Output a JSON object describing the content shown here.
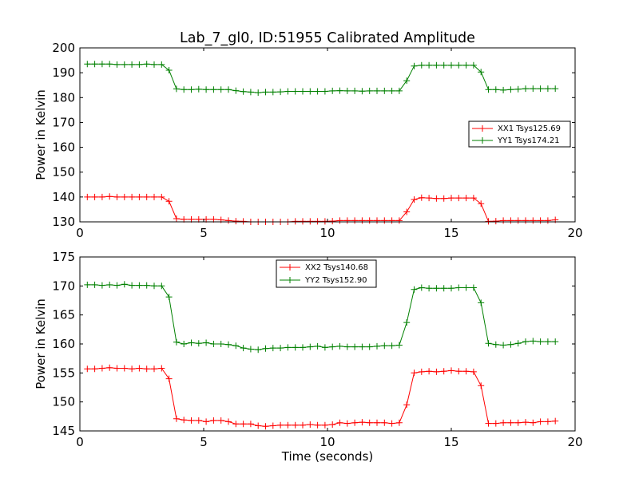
{
  "title": "Lab_7_gl0, ID:51955 Calibrated Amplitude",
  "chart_data": [
    {
      "type": "line",
      "title": "Lab_7_gl0, ID:51955 Calibrated Amplitude",
      "xlabel": "",
      "ylabel": "Power in Kelvin",
      "xlim": [
        0,
        20
      ],
      "ylim": [
        130,
        200
      ],
      "xticks": [
        "0",
        "5",
        "10",
        "15",
        "20"
      ],
      "yticks": [
        "130",
        "140",
        "150",
        "160",
        "170",
        "180",
        "190",
        "200"
      ],
      "legend_position": "center-right",
      "x": [
        0.3,
        0.6,
        0.9,
        1.2,
        1.5,
        1.8,
        2.1,
        2.4,
        2.7,
        3.0,
        3.3,
        3.6,
        3.9,
        4.2,
        4.5,
        4.8,
        5.1,
        5.4,
        5.7,
        6.0,
        6.3,
        6.6,
        6.9,
        7.2,
        7.5,
        7.8,
        8.1,
        8.4,
        8.7,
        9.0,
        9.3,
        9.6,
        9.9,
        10.2,
        10.5,
        10.8,
        11.1,
        11.4,
        11.7,
        12.0,
        12.3,
        12.6,
        12.9,
        13.2,
        13.5,
        13.8,
        14.1,
        14.4,
        14.7,
        15.0,
        15.3,
        15.6,
        15.9,
        16.2,
        16.5,
        16.8,
        17.1,
        17.4,
        17.7,
        18.0,
        18.3,
        18.6,
        18.9,
        19.2
      ],
      "series": [
        {
          "name": "XX1 Tsys125.69",
          "color": "#ff0000",
          "values": [
            140.0,
            140.0,
            140.0,
            140.2,
            140.0,
            140.0,
            140.0,
            140.0,
            140.0,
            140.0,
            140.0,
            138.3,
            131.3,
            131.0,
            131.0,
            131.0,
            131.0,
            131.0,
            130.8,
            130.5,
            130.3,
            130.2,
            130.0,
            130.0,
            130.0,
            130.0,
            130.0,
            130.0,
            130.2,
            130.2,
            130.2,
            130.2,
            130.2,
            130.3,
            130.5,
            130.5,
            130.5,
            130.5,
            130.5,
            130.5,
            130.5,
            130.5,
            130.5,
            134.0,
            139.0,
            139.7,
            139.6,
            139.4,
            139.4,
            139.6,
            139.6,
            139.6,
            139.6,
            137.3,
            130.2,
            130.3,
            130.5,
            130.5,
            130.5,
            130.5,
            130.5,
            130.5,
            130.5,
            130.8
          ]
        },
        {
          "name": "YY1 Tsys174.21",
          "color": "#008000",
          "values": [
            193.5,
            193.5,
            193.5,
            193.5,
            193.3,
            193.3,
            193.3,
            193.3,
            193.5,
            193.3,
            193.3,
            191.0,
            183.5,
            183.2,
            183.2,
            183.4,
            183.2,
            183.2,
            183.2,
            183.2,
            182.8,
            182.4,
            182.2,
            182.0,
            182.2,
            182.2,
            182.3,
            182.5,
            182.5,
            182.5,
            182.5,
            182.5,
            182.5,
            182.7,
            182.8,
            182.7,
            182.7,
            182.6,
            182.7,
            182.7,
            182.7,
            182.7,
            182.7,
            186.8,
            192.7,
            193.0,
            193.0,
            193.0,
            193.0,
            193.0,
            193.0,
            193.0,
            193.0,
            190.3,
            183.2,
            183.2,
            183.0,
            183.2,
            183.4,
            183.6,
            183.6,
            183.6,
            183.6,
            183.6
          ]
        }
      ]
    },
    {
      "type": "line",
      "title": "",
      "xlabel": "Time (seconds)",
      "ylabel": "Power in Kelvin",
      "xlim": [
        0,
        20
      ],
      "ylim": [
        145,
        175
      ],
      "xticks": [
        "0",
        "5",
        "10",
        "15",
        "20"
      ],
      "yticks": [
        "145",
        "150",
        "155",
        "160",
        "165",
        "170",
        "175"
      ],
      "legend_position": "upper-center",
      "x": [
        0.3,
        0.6,
        0.9,
        1.2,
        1.5,
        1.8,
        2.1,
        2.4,
        2.7,
        3.0,
        3.3,
        3.6,
        3.9,
        4.2,
        4.5,
        4.8,
        5.1,
        5.4,
        5.7,
        6.0,
        6.3,
        6.6,
        6.9,
        7.2,
        7.5,
        7.8,
        8.1,
        8.4,
        8.7,
        9.0,
        9.3,
        9.6,
        9.9,
        10.2,
        10.5,
        10.8,
        11.1,
        11.4,
        11.7,
        12.0,
        12.3,
        12.6,
        12.9,
        13.2,
        13.5,
        13.8,
        14.1,
        14.4,
        14.7,
        15.0,
        15.3,
        15.6,
        15.9,
        16.2,
        16.5,
        16.8,
        17.1,
        17.4,
        17.7,
        18.0,
        18.3,
        18.6,
        18.9,
        19.2
      ],
      "series": [
        {
          "name": "XX2 Tsys140.68",
          "color": "#ff0000",
          "values": [
            155.7,
            155.7,
            155.8,
            155.9,
            155.8,
            155.8,
            155.7,
            155.8,
            155.7,
            155.7,
            155.8,
            154.0,
            147.1,
            146.9,
            146.8,
            146.8,
            146.6,
            146.8,
            146.8,
            146.6,
            146.2,
            146.2,
            146.2,
            145.9,
            145.8,
            145.9,
            146.0,
            146.0,
            146.0,
            146.0,
            146.1,
            146.0,
            146.0,
            146.1,
            146.4,
            146.3,
            146.4,
            146.5,
            146.4,
            146.4,
            146.4,
            146.3,
            146.4,
            149.5,
            155.0,
            155.2,
            155.3,
            155.2,
            155.3,
            155.4,
            155.3,
            155.3,
            155.2,
            152.8,
            146.3,
            146.3,
            146.4,
            146.4,
            146.4,
            146.5,
            146.4,
            146.6,
            146.6,
            146.7
          ]
        },
        {
          "name": "YY2 Tsys152.90",
          "color": "#008000",
          "values": [
            170.2,
            170.2,
            170.1,
            170.2,
            170.1,
            170.3,
            170.1,
            170.1,
            170.1,
            170.0,
            170.0,
            168.1,
            160.3,
            160.0,
            160.2,
            160.1,
            160.2,
            160.0,
            160.0,
            159.9,
            159.7,
            159.3,
            159.1,
            159.0,
            159.2,
            159.3,
            159.3,
            159.4,
            159.4,
            159.4,
            159.5,
            159.6,
            159.4,
            159.5,
            159.6,
            159.5,
            159.5,
            159.5,
            159.5,
            159.6,
            159.7,
            159.7,
            159.8,
            163.7,
            169.4,
            169.7,
            169.6,
            169.6,
            169.6,
            169.6,
            169.7,
            169.7,
            169.7,
            167.1,
            160.1,
            159.9,
            159.8,
            159.9,
            160.1,
            160.4,
            160.5,
            160.4,
            160.4,
            160.4
          ]
        }
      ]
    }
  ]
}
